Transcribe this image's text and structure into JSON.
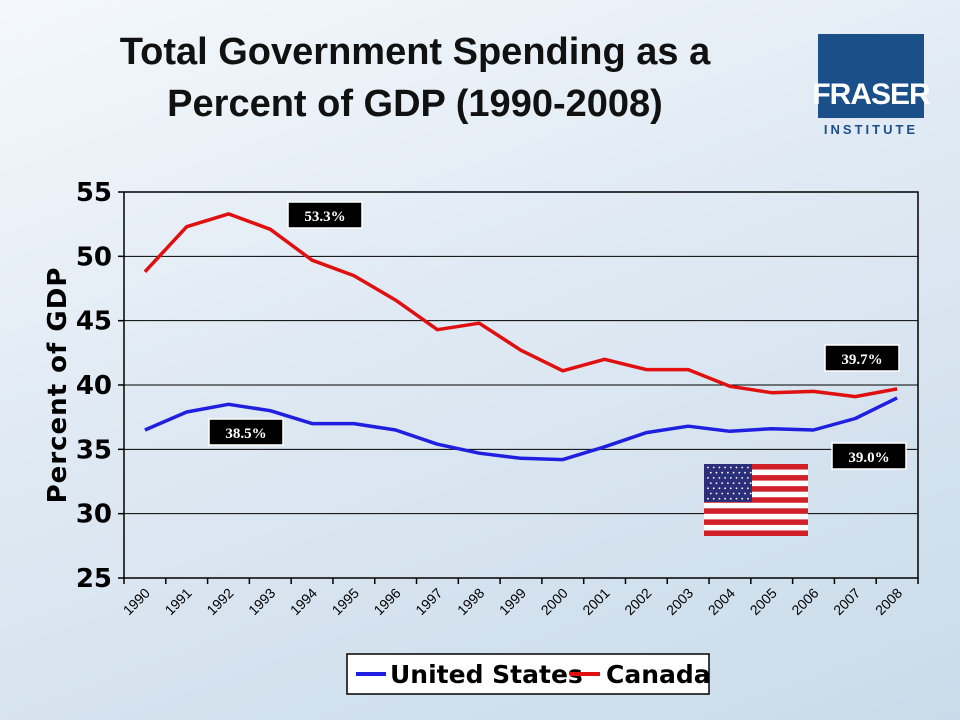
{
  "title_line1": "Total Government Spending as a",
  "title_line2": "Percent of GDP (1990-2008)",
  "logo": {
    "name": "FRASER",
    "sub": "INSTITUTE",
    "color": "#1b4f8a"
  },
  "chart_data": {
    "type": "line",
    "x": [
      "1990",
      "1991",
      "1992",
      "1993",
      "1994",
      "1995",
      "1996",
      "1997",
      "1998",
      "1999",
      "2000",
      "2001",
      "2002",
      "2003",
      "2004",
      "2005",
      "2006",
      "2007",
      "2008"
    ],
    "ylabel": "Percent of GDP",
    "xlabel": "",
    "ylim": [
      25,
      55
    ],
    "yticks": [
      25,
      30,
      35,
      40,
      45,
      50,
      55
    ],
    "grid": "horizontal",
    "legend_position": "bottom",
    "series": [
      {
        "name": "United States",
        "color": "#1f1fe0",
        "values": [
          36.5,
          37.9,
          38.5,
          38.0,
          37.0,
          37.0,
          36.5,
          35.4,
          34.7,
          34.3,
          34.2,
          35.2,
          36.3,
          36.8,
          36.4,
          36.6,
          36.5,
          37.4,
          39.0
        ]
      },
      {
        "name": "Canada",
        "color": "#e01010",
        "values": [
          48.8,
          52.3,
          53.3,
          52.1,
          49.7,
          48.5,
          46.6,
          44.3,
          44.8,
          42.7,
          41.1,
          42.0,
          41.2,
          41.2,
          39.9,
          39.4,
          39.5,
          39.1,
          39.7
        ]
      }
    ],
    "annotations": [
      {
        "text": "53.3%",
        "x": "1992",
        "series": "Canada"
      },
      {
        "text": "38.5%",
        "x": "1992",
        "series": "United States"
      },
      {
        "text": "39.7%",
        "x": "2008",
        "series": "Canada"
      },
      {
        "text": "39.0%",
        "x": "2008",
        "series": "United States"
      }
    ]
  }
}
